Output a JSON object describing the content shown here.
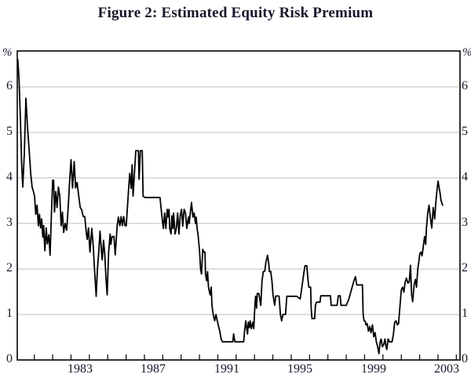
{
  "title": "Figure 2: Estimated Equity Risk Premium",
  "axis": {
    "unit_left": "%",
    "unit_right": "%",
    "y_labels": [
      "6",
      "5",
      "4",
      "3",
      "2",
      "1",
      "0"
    ],
    "x_labels": [
      "1983",
      "1987",
      "1991",
      "1995",
      "1999",
      "2003"
    ]
  },
  "colors": {
    "background": "#ffffff",
    "text": "#17172b",
    "grid": "#bdbdbd",
    "frame": "#000000",
    "line": "#000000"
  },
  "chart_data": {
    "type": "line",
    "title": "Figure 2: Estimated Equity Risk Premium",
    "xlabel": "",
    "ylabel": "%",
    "ylim": [
      0,
      6.79
    ],
    "xlim": [
      1980.07,
      2004.2
    ],
    "grid": "horizontal",
    "gridlines_y": [
      1,
      2,
      3,
      4,
      5,
      6
    ],
    "x_tick_years_start": 1981,
    "x_tick_years_end": 2004,
    "x_label_years": [
      1983,
      1987,
      1991,
      1995,
      1999,
      2003
    ],
    "legend": "none",
    "series": [
      {
        "name": "Estimated equity risk premium (per cent)",
        "points": [
          [
            1980.1,
            6.6
          ],
          [
            1980.17,
            6.15
          ],
          [
            1980.24,
            5.3
          ],
          [
            1980.31,
            4.3
          ],
          [
            1980.37,
            3.8
          ],
          [
            1980.45,
            4.5
          ],
          [
            1980.54,
            5.75
          ],
          [
            1980.63,
            5.1
          ],
          [
            1980.72,
            4.6
          ],
          [
            1980.8,
            4.1
          ],
          [
            1980.88,
            3.8
          ],
          [
            1980.95,
            3.7
          ],
          [
            1981.01,
            3.6
          ],
          [
            1981.08,
            3.2
          ],
          [
            1981.15,
            3.4
          ],
          [
            1981.22,
            2.95
          ],
          [
            1981.28,
            3.2
          ],
          [
            1981.34,
            2.9
          ],
          [
            1981.4,
            3.1
          ],
          [
            1981.46,
            2.7
          ],
          [
            1981.51,
            2.95
          ],
          [
            1981.57,
            2.4
          ],
          [
            1981.65,
            2.9
          ],
          [
            1981.71,
            2.55
          ],
          [
            1981.79,
            2.75
          ],
          [
            1981.86,
            2.3
          ],
          [
            1981.93,
            3.2
          ],
          [
            1982.0,
            3.95
          ],
          [
            1982.05,
            3.95
          ],
          [
            1982.1,
            3.25
          ],
          [
            1982.17,
            3.7
          ],
          [
            1982.24,
            3.35
          ],
          [
            1982.31,
            3.8
          ],
          [
            1982.39,
            3.6
          ],
          [
            1982.46,
            2.95
          ],
          [
            1982.53,
            3.25
          ],
          [
            1982.6,
            2.8
          ],
          [
            1982.68,
            3.0
          ],
          [
            1982.76,
            2.85
          ],
          [
            1982.84,
            3.3
          ],
          [
            1982.92,
            3.9
          ],
          [
            1983.0,
            4.4
          ],
          [
            1983.08,
            3.78
          ],
          [
            1983.17,
            4.36
          ],
          [
            1983.25,
            3.78
          ],
          [
            1983.33,
            3.9
          ],
          [
            1983.42,
            3.6
          ],
          [
            1983.5,
            3.35
          ],
          [
            1983.58,
            3.3
          ],
          [
            1983.67,
            3.15
          ],
          [
            1983.75,
            3.15
          ],
          [
            1983.83,
            2.8
          ],
          [
            1983.88,
            2.65
          ],
          [
            1983.95,
            2.9
          ],
          [
            1984.03,
            2.37
          ],
          [
            1984.13,
            2.89
          ],
          [
            1984.21,
            2.5
          ],
          [
            1984.28,
            2.0
          ],
          [
            1984.37,
            1.4
          ],
          [
            1984.44,
            2.0
          ],
          [
            1984.51,
            2.37
          ],
          [
            1984.58,
            2.83
          ],
          [
            1984.66,
            2.37
          ],
          [
            1984.7,
            2.2
          ],
          [
            1984.77,
            2.63
          ],
          [
            1984.84,
            2.31
          ],
          [
            1984.91,
            1.77
          ],
          [
            1984.97,
            1.43
          ],
          [
            1985.05,
            2.37
          ],
          [
            1985.13,
            2.77
          ],
          [
            1985.17,
            2.54
          ],
          [
            1985.24,
            2.71
          ],
          [
            1985.34,
            2.71
          ],
          [
            1985.41,
            2.31
          ],
          [
            1985.51,
            2.94
          ],
          [
            1985.58,
            3.14
          ],
          [
            1985.66,
            2.95
          ],
          [
            1985.73,
            3.15
          ],
          [
            1985.8,
            2.95
          ],
          [
            1985.87,
            3.15
          ],
          [
            1985.94,
            2.95
          ],
          [
            1986.01,
            2.95
          ],
          [
            1986.08,
            3.4
          ],
          [
            1986.14,
            3.77
          ],
          [
            1986.2,
            4.1
          ],
          [
            1986.28,
            3.77
          ],
          [
            1986.33,
            4.29
          ],
          [
            1986.38,
            3.6
          ],
          [
            1986.44,
            4.0
          ],
          [
            1986.53,
            4.6
          ],
          [
            1986.67,
            4.6
          ],
          [
            1986.71,
            3.97
          ],
          [
            1986.78,
            4.6
          ],
          [
            1986.88,
            4.6
          ],
          [
            1986.93,
            3.6
          ],
          [
            1987.02,
            3.57
          ],
          [
            1987.85,
            3.57
          ],
          [
            1987.95,
            3.17
          ],
          [
            1988.03,
            2.89
          ],
          [
            1988.1,
            3.23
          ],
          [
            1988.17,
            2.89
          ],
          [
            1988.24,
            3.31
          ],
          [
            1988.28,
            3.14
          ],
          [
            1988.34,
            3.31
          ],
          [
            1988.38,
            2.89
          ],
          [
            1988.45,
            2.77
          ],
          [
            1988.5,
            3.17
          ],
          [
            1988.55,
            2.89
          ],
          [
            1988.59,
            3.23
          ],
          [
            1988.67,
            2.77
          ],
          [
            1988.74,
            2.89
          ],
          [
            1988.81,
            3.23
          ],
          [
            1988.88,
            2.77
          ],
          [
            1988.95,
            3.17
          ],
          [
            1989.02,
            3.31
          ],
          [
            1989.09,
            2.94
          ],
          [
            1989.16,
            3.31
          ],
          [
            1989.24,
            3.23
          ],
          [
            1989.31,
            2.89
          ],
          [
            1989.4,
            3.14
          ],
          [
            1989.44,
            3.0
          ],
          [
            1989.54,
            3.37
          ],
          [
            1989.57,
            3.46
          ],
          [
            1989.64,
            3.14
          ],
          [
            1989.71,
            3.23
          ],
          [
            1989.78,
            3.0
          ],
          [
            1989.82,
            3.14
          ],
          [
            1989.87,
            2.89
          ],
          [
            1989.92,
            2.77
          ],
          [
            1989.97,
            2.54
          ],
          [
            1990.01,
            2.37
          ],
          [
            1990.06,
            2.0
          ],
          [
            1990.11,
            1.89
          ],
          [
            1990.18,
            2.43
          ],
          [
            1990.25,
            2.37
          ],
          [
            1990.3,
            2.37
          ],
          [
            1990.33,
            1.89
          ],
          [
            1990.39,
            1.74
          ],
          [
            1990.44,
            1.94
          ],
          [
            1990.49,
            1.6
          ],
          [
            1990.58,
            1.43
          ],
          [
            1990.64,
            1.6
          ],
          [
            1990.68,
            1.2
          ],
          [
            1990.75,
            1.0
          ],
          [
            1990.83,
            0.86
          ],
          [
            1990.9,
            1.0
          ],
          [
            1990.97,
            0.86
          ],
          [
            1991.04,
            0.74
          ],
          [
            1991.11,
            0.63
          ],
          [
            1991.18,
            0.46
          ],
          [
            1991.25,
            0.4
          ],
          [
            1991.82,
            0.4
          ],
          [
            1991.86,
            0.57
          ],
          [
            1991.93,
            0.4
          ],
          [
            1992.41,
            0.4
          ],
          [
            1992.45,
            0.6
          ],
          [
            1992.49,
            0.74
          ],
          [
            1992.52,
            0.86
          ],
          [
            1992.58,
            0.69
          ],
          [
            1992.62,
            0.57
          ],
          [
            1992.66,
            0.83
          ],
          [
            1992.72,
            0.71
          ],
          [
            1992.76,
            0.86
          ],
          [
            1992.83,
            0.69
          ],
          [
            1992.91,
            0.83
          ],
          [
            1992.96,
            0.69
          ],
          [
            1993.02,
            1.2
          ],
          [
            1993.06,
            1.4
          ],
          [
            1993.11,
            1.14
          ],
          [
            1993.15,
            1.46
          ],
          [
            1993.24,
            1.46
          ],
          [
            1993.34,
            1.2
          ],
          [
            1993.41,
            1.74
          ],
          [
            1993.48,
            1.94
          ],
          [
            1993.56,
            1.95
          ],
          [
            1993.62,
            2.14
          ],
          [
            1993.67,
            2.23
          ],
          [
            1993.71,
            2.3
          ],
          [
            1993.77,
            2.14
          ],
          [
            1993.81,
            1.94
          ],
          [
            1993.88,
            1.95
          ],
          [
            1993.95,
            1.74
          ],
          [
            1994.01,
            1.43
          ],
          [
            1994.1,
            1.2
          ],
          [
            1994.15,
            1.4
          ],
          [
            1994.24,
            1.41
          ],
          [
            1994.34,
            1.4
          ],
          [
            1994.41,
            1.0
          ],
          [
            1994.48,
            0.86
          ],
          [
            1994.55,
            1.0
          ],
          [
            1994.69,
            1.0
          ],
          [
            1994.76,
            1.4
          ],
          [
            1995.3,
            1.4
          ],
          [
            1995.49,
            1.34
          ],
          [
            1995.56,
            1.54
          ],
          [
            1995.63,
            1.74
          ],
          [
            1995.7,
            1.94
          ],
          [
            1995.75,
            2.07
          ],
          [
            1995.85,
            2.07
          ],
          [
            1995.92,
            1.74
          ],
          [
            1995.96,
            1.6
          ],
          [
            1996.06,
            1.6
          ],
          [
            1996.09,
            1.14
          ],
          [
            1996.13,
            0.91
          ],
          [
            1996.28,
            0.91
          ],
          [
            1996.32,
            1.2
          ],
          [
            1996.38,
            1.27
          ],
          [
            1996.57,
            1.27
          ],
          [
            1996.61,
            1.41
          ],
          [
            1997.14,
            1.41
          ],
          [
            1997.18,
            1.2
          ],
          [
            1997.5,
            1.2
          ],
          [
            1997.57,
            1.41
          ],
          [
            1997.67,
            1.41
          ],
          [
            1997.71,
            1.2
          ],
          [
            1998.0,
            1.2
          ],
          [
            1998.14,
            1.34
          ],
          [
            1998.28,
            1.54
          ],
          [
            1998.42,
            1.74
          ],
          [
            1998.5,
            1.83
          ],
          [
            1998.57,
            1.65
          ],
          [
            1998.88,
            1.65
          ],
          [
            1998.92,
            1.0
          ],
          [
            1998.97,
            0.86
          ],
          [
            1999.04,
            0.85
          ],
          [
            1999.07,
            0.77
          ],
          [
            1999.14,
            0.8
          ],
          [
            1999.21,
            0.63
          ],
          [
            1999.28,
            0.74
          ],
          [
            1999.35,
            0.6
          ],
          [
            1999.43,
            0.77
          ],
          [
            1999.5,
            0.51
          ],
          [
            1999.57,
            0.6
          ],
          [
            1999.64,
            0.4
          ],
          [
            1999.71,
            0.29
          ],
          [
            1999.78,
            0.14
          ],
          [
            1999.85,
            0.4
          ],
          [
            1999.9,
            0.46
          ],
          [
            1999.97,
            0.29
          ],
          [
            2000.04,
            0.34
          ],
          [
            2000.11,
            0.46
          ],
          [
            2000.17,
            0.29
          ],
          [
            2000.21,
            0.23
          ],
          [
            2000.28,
            0.46
          ],
          [
            2000.36,
            0.4
          ],
          [
            2000.5,
            0.4
          ],
          [
            2000.57,
            0.57
          ],
          [
            2000.64,
            0.83
          ],
          [
            2000.71,
            0.86
          ],
          [
            2000.79,
            0.77
          ],
          [
            2000.85,
            0.8
          ],
          [
            2000.93,
            1.2
          ],
          [
            2001.0,
            1.54
          ],
          [
            2001.07,
            1.6
          ],
          [
            2001.14,
            1.49
          ],
          [
            2001.21,
            1.71
          ],
          [
            2001.28,
            1.8
          ],
          [
            2001.36,
            1.69
          ],
          [
            2001.43,
            1.71
          ],
          [
            2001.5,
            2.08
          ],
          [
            2001.56,
            1.45
          ],
          [
            2001.62,
            1.28
          ],
          [
            2001.7,
            1.66
          ],
          [
            2001.77,
            1.77
          ],
          [
            2001.83,
            1.6
          ],
          [
            2001.9,
            2.0
          ],
          [
            2001.95,
            2.14
          ],
          [
            2002.01,
            2.34
          ],
          [
            2002.08,
            2.37
          ],
          [
            2002.13,
            2.29
          ],
          [
            2002.16,
            2.37
          ],
          [
            2002.23,
            2.6
          ],
          [
            2002.27,
            2.71
          ],
          [
            2002.33,
            2.54
          ],
          [
            2002.37,
            2.89
          ],
          [
            2002.44,
            3.23
          ],
          [
            2002.51,
            3.4
          ],
          [
            2002.58,
            3.15
          ],
          [
            2002.66,
            2.9
          ],
          [
            2002.74,
            3.35
          ],
          [
            2002.82,
            3.1
          ],
          [
            2002.9,
            3.55
          ],
          [
            2003.0,
            3.93
          ],
          [
            2003.1,
            3.7
          ],
          [
            2003.17,
            3.5
          ],
          [
            2003.25,
            3.4
          ]
        ]
      }
    ]
  }
}
